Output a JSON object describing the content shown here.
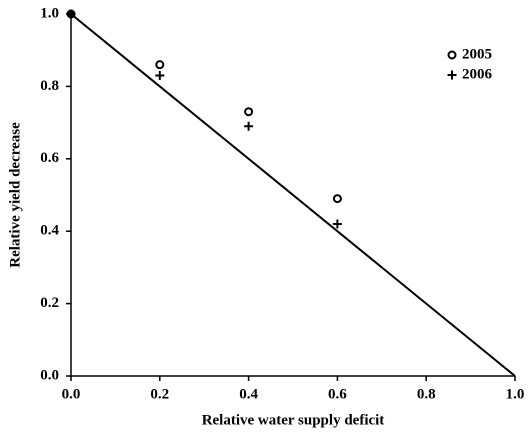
{
  "chart_data": {
    "type": "scatter",
    "x_label": "Relative water supply deficit",
    "y_label": "Relative yield decrease",
    "xlim": [
      0,
      1
    ],
    "ylim": [
      0,
      1
    ],
    "xticks": [
      {
        "value": 0,
        "label": "0.0"
      },
      0.2,
      0.4,
      0.6,
      0.8,
      {
        "value": 1,
        "label": "1.0"
      }
    ],
    "yticks": [
      {
        "value": 0,
        "label": "0.0"
      },
      0.2,
      0.4,
      0.6,
      0.8,
      {
        "value": 1,
        "label": "1.0"
      }
    ],
    "series": [
      {
        "name": "2005",
        "marker": "circle",
        "color": "#000000",
        "x": [
          0,
          0.2,
          0.4,
          0.6
        ],
        "values": [
          1.0,
          0.86,
          0.73,
          0.49
        ]
      },
      {
        "name": "2006",
        "marker": "plus",
        "color": "#000000",
        "x": [
          0,
          0.2,
          0.4,
          0.6
        ],
        "values": [
          1.0,
          0.83,
          0.69,
          0.42
        ]
      }
    ],
    "fit_line": {
      "x": [
        0,
        1
      ],
      "values": [
        1,
        0
      ],
      "color": "#000000"
    },
    "legend": "upper right"
  }
}
